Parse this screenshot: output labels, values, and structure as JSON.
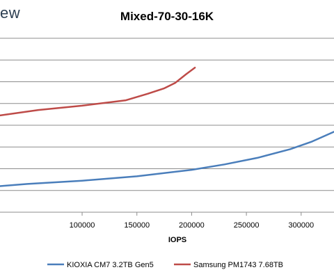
{
  "brand": {
    "text": "ew"
  },
  "chart_data": {
    "type": "line",
    "title": "Mixed-70-30-16K",
    "xlabel": "IOPS",
    "ylabel": "",
    "xlim": [
      25000,
      330000
    ],
    "ylim": [
      0,
      8
    ],
    "grid": true,
    "x_ticks": [
      "100000",
      "150000",
      "200000",
      "250000",
      "300000"
    ],
    "x_tick_values": [
      100000,
      150000,
      200000,
      250000,
      300000
    ],
    "y_gridlines": [
      1,
      2,
      3,
      4,
      5,
      6,
      7,
      8
    ],
    "legend_position": "bottom",
    "series": [
      {
        "name": "KIOXIA CM7 3.2TB Gen5",
        "color": "#4a7ebb",
        "x": [
          25000,
          50000,
          100000,
          150000,
          200000,
          230000,
          260000,
          290000,
          310000,
          330000
        ],
        "y": [
          1.2,
          1.3,
          1.45,
          1.65,
          1.95,
          2.2,
          2.5,
          2.9,
          3.25,
          3.7
        ]
      },
      {
        "name": "Samsung PM1743 7.68TB",
        "color": "#be4b48",
        "x": [
          25000,
          60000,
          100000,
          140000,
          160000,
          175000,
          185000,
          195000,
          203000
        ],
        "y": [
          4.45,
          4.7,
          4.9,
          5.15,
          5.45,
          5.7,
          5.95,
          6.35,
          6.65
        ]
      }
    ]
  }
}
